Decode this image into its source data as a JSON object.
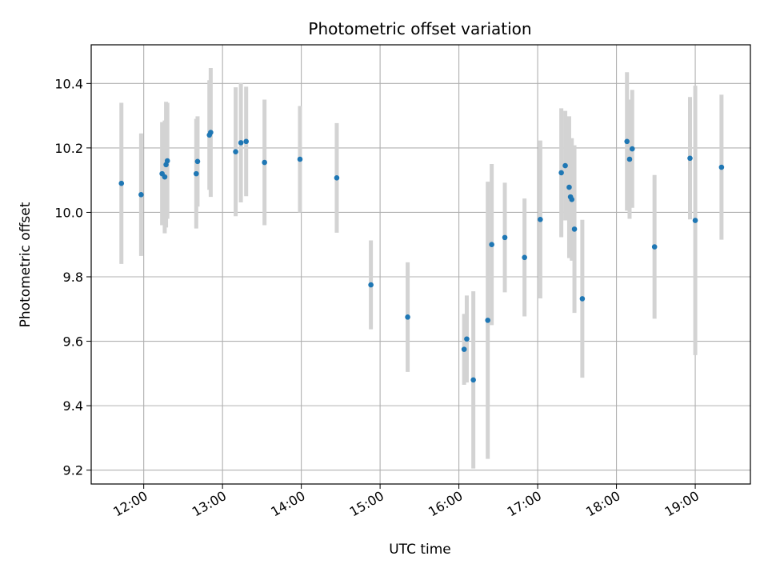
{
  "chart_data": {
    "type": "scatter",
    "title": "Photometric offset variation",
    "xlabel": "UTC time",
    "ylabel": "Photometric offset",
    "x_format": "HH:MM",
    "xlim": [
      "11:20",
      "19:42"
    ],
    "ylim": [
      9.157,
      10.52
    ],
    "grid": true,
    "x_ticks": [
      "12:00",
      "13:00",
      "14:00",
      "15:00",
      "16:00",
      "17:00",
      "18:00",
      "19:00"
    ],
    "y_ticks": [
      "9.2",
      "9.4",
      "9.6",
      "9.8",
      "10.0",
      "10.2",
      "10.4"
    ],
    "point_color": "#1f77b4",
    "errorbar_color": "#d3d3d3",
    "points": [
      {
        "x": "11:43",
        "y": 10.09,
        "err": 0.25
      },
      {
        "x": "11:58",
        "y": 10.055,
        "err": 0.19
      },
      {
        "x": "12:14",
        "y": 10.12,
        "err": 0.16
      },
      {
        "x": "12:16",
        "y": 10.11,
        "err": 0.175
      },
      {
        "x": "12:17",
        "y": 10.148,
        "err": 0.195
      },
      {
        "x": "12:18",
        "y": 10.16,
        "err": 0.18
      },
      {
        "x": "12:40",
        "y": 10.12,
        "err": 0.17
      },
      {
        "x": "12:41",
        "y": 10.158,
        "err": 0.14
      },
      {
        "x": "12:50",
        "y": 10.24,
        "err": 0.17
      },
      {
        "x": "12:51",
        "y": 10.248,
        "err": 0.2
      },
      {
        "x": "13:10",
        "y": 10.188,
        "err": 0.2
      },
      {
        "x": "13:14",
        "y": 10.216,
        "err": 0.185
      },
      {
        "x": "13:18",
        "y": 10.22,
        "err": 0.17
      },
      {
        "x": "13:32",
        "y": 10.155,
        "err": 0.195
      },
      {
        "x": "13:59",
        "y": 10.165,
        "err": 0.165
      },
      {
        "x": "14:27",
        "y": 10.107,
        "err": 0.17
      },
      {
        "x": "14:53",
        "y": 9.775,
        "err": 0.138
      },
      {
        "x": "15:21",
        "y": 9.675,
        "err": 0.17
      },
      {
        "x": "16:04",
        "y": 9.575,
        "err": 0.11
      },
      {
        "x": "16:06",
        "y": 9.607,
        "err": 0.135
      },
      {
        "x": "16:11",
        "y": 9.48,
        "err": 0.275
      },
      {
        "x": "16:22",
        "y": 9.665,
        "err": 0.43
      },
      {
        "x": "16:25",
        "y": 9.9,
        "err": 0.25
      },
      {
        "x": "16:35",
        "y": 9.922,
        "err": 0.17
      },
      {
        "x": "16:50",
        "y": 9.86,
        "err": 0.183
      },
      {
        "x": "17:02",
        "y": 9.978,
        "err": 0.245
      },
      {
        "x": "17:18",
        "y": 10.123,
        "err": 0.2
      },
      {
        "x": "17:21",
        "y": 10.145,
        "err": 0.17
      },
      {
        "x": "17:24",
        "y": 10.078,
        "err": 0.22
      },
      {
        "x": "17:25",
        "y": 10.048,
        "err": 0.18
      },
      {
        "x": "17:26",
        "y": 10.04,
        "err": 0.19
      },
      {
        "x": "17:28",
        "y": 9.948,
        "err": 0.26
      },
      {
        "x": "17:34",
        "y": 9.732,
        "err": 0.245
      },
      {
        "x": "18:08",
        "y": 10.22,
        "err": 0.215
      },
      {
        "x": "18:10",
        "y": 10.165,
        "err": 0.185
      },
      {
        "x": "18:12",
        "y": 10.197,
        "err": 0.183
      },
      {
        "x": "18:29",
        "y": 9.893,
        "err": 0.223
      },
      {
        "x": "18:56",
        "y": 10.168,
        "err": 0.19
      },
      {
        "x": "19:00",
        "y": 9.975,
        "err": 0.418
      },
      {
        "x": "19:20",
        "y": 10.14,
        "err": 0.225
      }
    ]
  }
}
